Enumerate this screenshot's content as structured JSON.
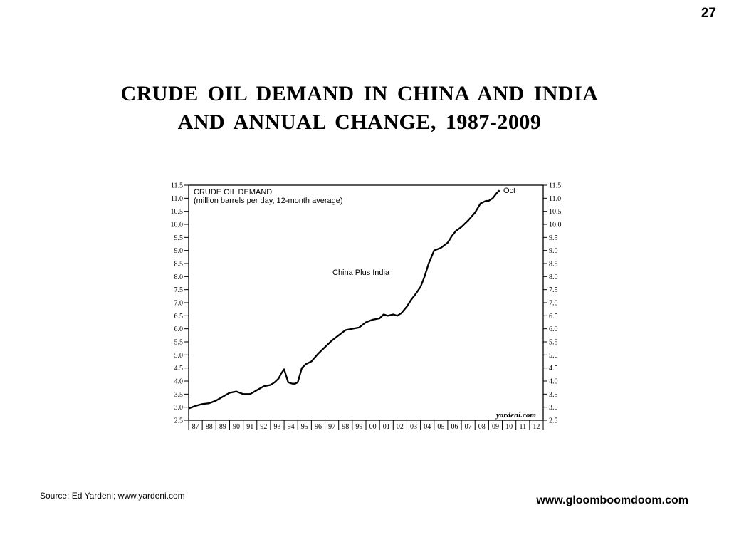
{
  "slide": {
    "page_number": "27",
    "title_line1": "CRUDE  OIL  DEMAND  IN  CHINA  AND  INDIA",
    "title_line2": "AND  ANNUAL  CHANGE,  1987-2009",
    "source": "Source:  Ed Yardeni; www.yardeni.com",
    "website": "www.gloomboomdoom.com"
  },
  "chart_data": {
    "type": "line",
    "title": "CRUDE OIL DEMAND",
    "subtitle": "(million barrels per day, 12-month average)",
    "series_label": "China Plus India",
    "end_annotation": "Oct",
    "credit": "yardeni.com",
    "ylim": [
      2.5,
      11.5
    ],
    "y_ticks": [
      "2.5",
      "3.0",
      "3.5",
      "4.0",
      "4.5",
      "5.0",
      "5.5",
      "6.0",
      "6.5",
      "7.0",
      "7.5",
      "8.0",
      "8.5",
      "9.0",
      "9.5",
      "10.0",
      "10.5",
      "11.0",
      "11.5"
    ],
    "xlim": [
      1987,
      2013
    ],
    "x_ticks": [
      "87",
      "88",
      "89",
      "90",
      "91",
      "92",
      "93",
      "94",
      "95",
      "96",
      "97",
      "98",
      "99",
      "00",
      "01",
      "02",
      "03",
      "04",
      "05",
      "06",
      "07",
      "08",
      "09",
      "10",
      "11",
      "12"
    ],
    "grid": false,
    "series": [
      {
        "name": "China Plus India",
        "x": [
          1987.0,
          1987.5,
          1988.0,
          1988.5,
          1989.0,
          1989.5,
          1990.0,
          1990.5,
          1991.0,
          1991.5,
          1992.0,
          1992.5,
          1993.0,
          1993.3,
          1993.6,
          1993.8,
          1994.0,
          1994.3,
          1994.6,
          1994.8,
          1995.0,
          1995.3,
          1995.6,
          1996.0,
          1996.5,
          1997.0,
          1997.5,
          1998.0,
          1998.5,
          1999.0,
          1999.5,
          2000.0,
          2000.5,
          2001.0,
          2001.3,
          2001.6,
          2002.0,
          2002.3,
          2002.6,
          2003.0,
          2003.3,
          2003.6,
          2004.0,
          2004.3,
          2004.6,
          2005.0,
          2005.5,
          2006.0,
          2006.3,
          2006.6,
          2007.0,
          2007.5,
          2008.0,
          2008.4,
          2008.8,
          2009.0,
          2009.3,
          2009.6,
          2009.8
        ],
        "y": [
          2.95,
          3.05,
          3.12,
          3.15,
          3.25,
          3.4,
          3.55,
          3.6,
          3.5,
          3.5,
          3.65,
          3.8,
          3.85,
          3.95,
          4.1,
          4.3,
          4.45,
          3.95,
          3.9,
          3.9,
          3.95,
          4.5,
          4.65,
          4.75,
          5.05,
          5.3,
          5.55,
          5.75,
          5.95,
          6.0,
          6.05,
          6.25,
          6.35,
          6.4,
          6.55,
          6.5,
          6.55,
          6.5,
          6.6,
          6.85,
          7.1,
          7.3,
          7.6,
          8.0,
          8.5,
          9.0,
          9.1,
          9.3,
          9.55,
          9.75,
          9.9,
          10.15,
          10.45,
          10.8,
          10.9,
          10.9,
          11.0,
          11.2,
          11.3
        ]
      }
    ]
  }
}
